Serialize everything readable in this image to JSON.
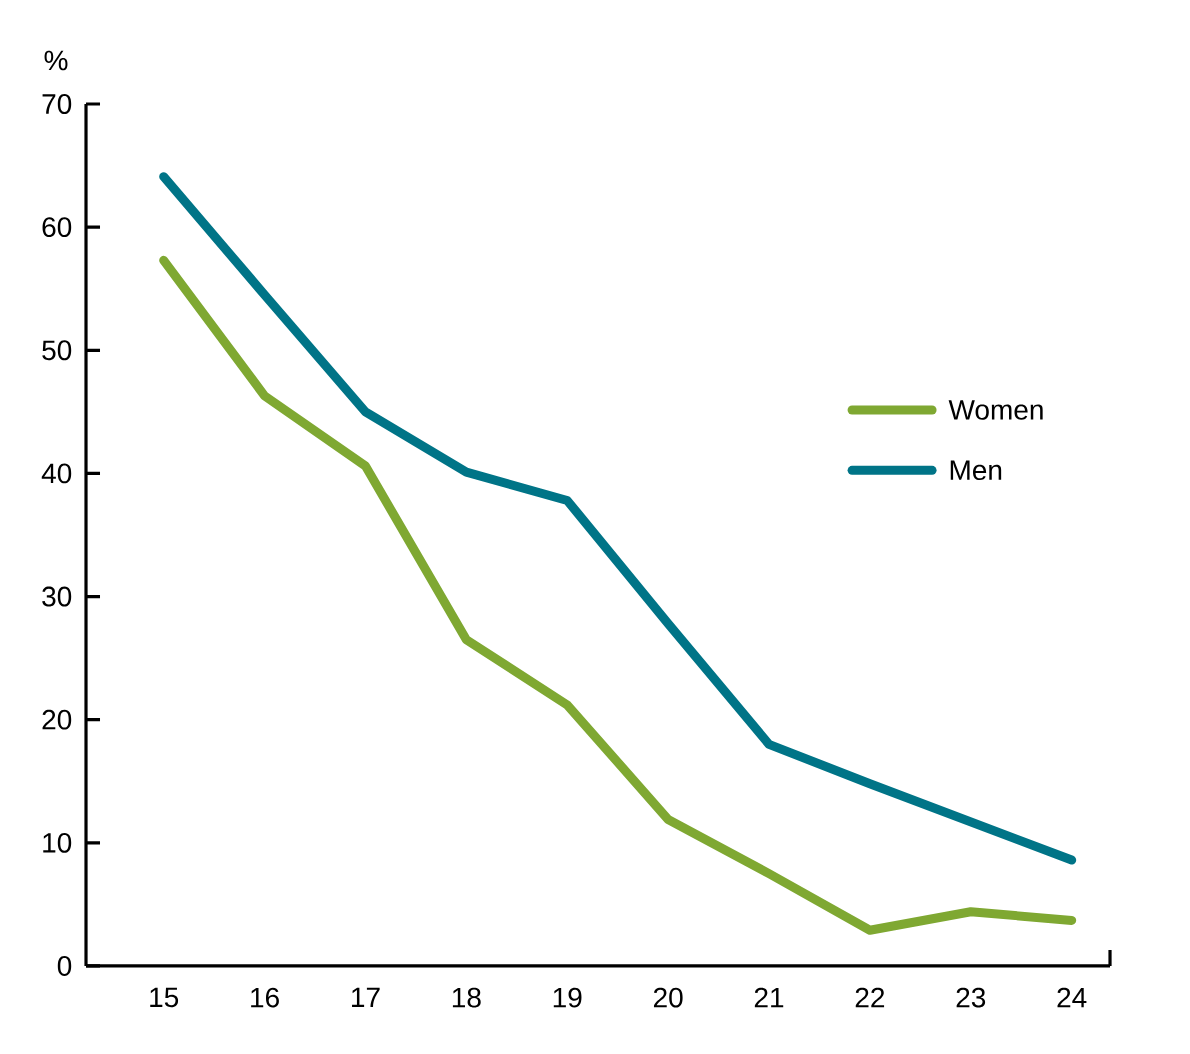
{
  "chart_data": {
    "type": "line",
    "ylabel": "%",
    "categories": [
      "15",
      "16",
      "17",
      "18",
      "19",
      "20",
      "21",
      "22",
      "23",
      "24"
    ],
    "series": [
      {
        "name": "Women",
        "color": "#7fa832",
        "values": [
          57.3,
          46.3,
          40.6,
          26.5,
          21.2,
          11.9,
          7.5,
          2.9,
          4.4,
          3.7
        ]
      },
      {
        "name": "Men",
        "color": "#007487",
        "values": [
          64.1,
          54.5,
          45.0,
          40.1,
          37.8,
          27.8,
          18.0,
          14.8,
          11.7,
          8.6
        ]
      }
    ],
    "ylim": [
      0,
      70
    ],
    "yticks": [
      0,
      10,
      20,
      30,
      40,
      50,
      60,
      70
    ],
    "legend": "right",
    "line_style": "solid",
    "marker": "none"
  }
}
